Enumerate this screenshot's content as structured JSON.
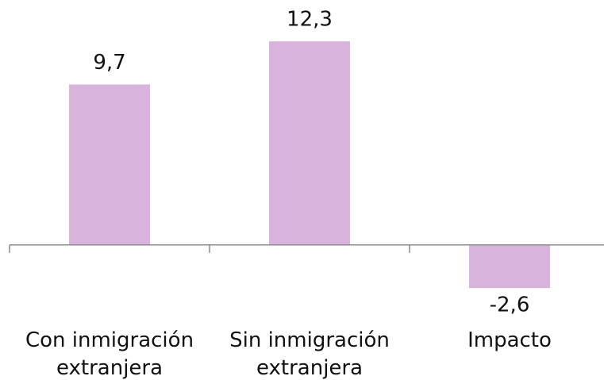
{
  "chart_data": {
    "type": "bar",
    "categories": [
      "Con inmigración extranjera",
      "Sin inmigración extranjera",
      "Impacto"
    ],
    "values": [
      9.7,
      12.3,
      -2.6
    ],
    "value_labels": [
      "9,7",
      "12,3",
      "-2,6"
    ],
    "color": "#d8b4dc",
    "ylim": [
      -6,
      14.8
    ]
  }
}
